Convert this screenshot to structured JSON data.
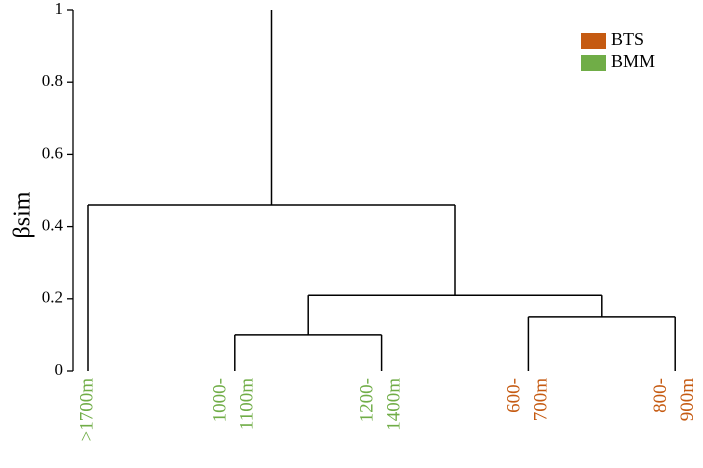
{
  "chart_data": {
    "type": "dendrogram",
    "ylabel": "βsim",
    "ylim": [
      0,
      1
    ],
    "yticks": [
      0,
      0.2,
      0.4,
      0.6,
      0.8,
      1
    ],
    "series": [
      {
        "name": "BTS",
        "color": "#c55a11"
      },
      {
        "name": "BMM",
        "color": "#70ad47"
      }
    ],
    "legend": "upper right",
    "leaves": [
      {
        "label": [
          ">1700m"
        ],
        "series": 1
      },
      {
        "label": [
          "1000-",
          "1100m"
        ],
        "series": 1
      },
      {
        "label": [
          "1200-",
          "1400m"
        ],
        "series": 1
      },
      {
        "label": [
          "600-",
          "700m"
        ],
        "series": 0
      },
      {
        "label": [
          "800-",
          "900m"
        ],
        "series": 0
      }
    ],
    "merges": [
      {
        "children": [
          1,
          2
        ],
        "height": 0.1
      },
      {
        "children": [
          3,
          4
        ],
        "height": 0.15
      },
      {
        "children": [
          5,
          6
        ],
        "height": 0.21
      },
      {
        "children": [
          0,
          7
        ],
        "height": 0.46
      }
    ]
  }
}
